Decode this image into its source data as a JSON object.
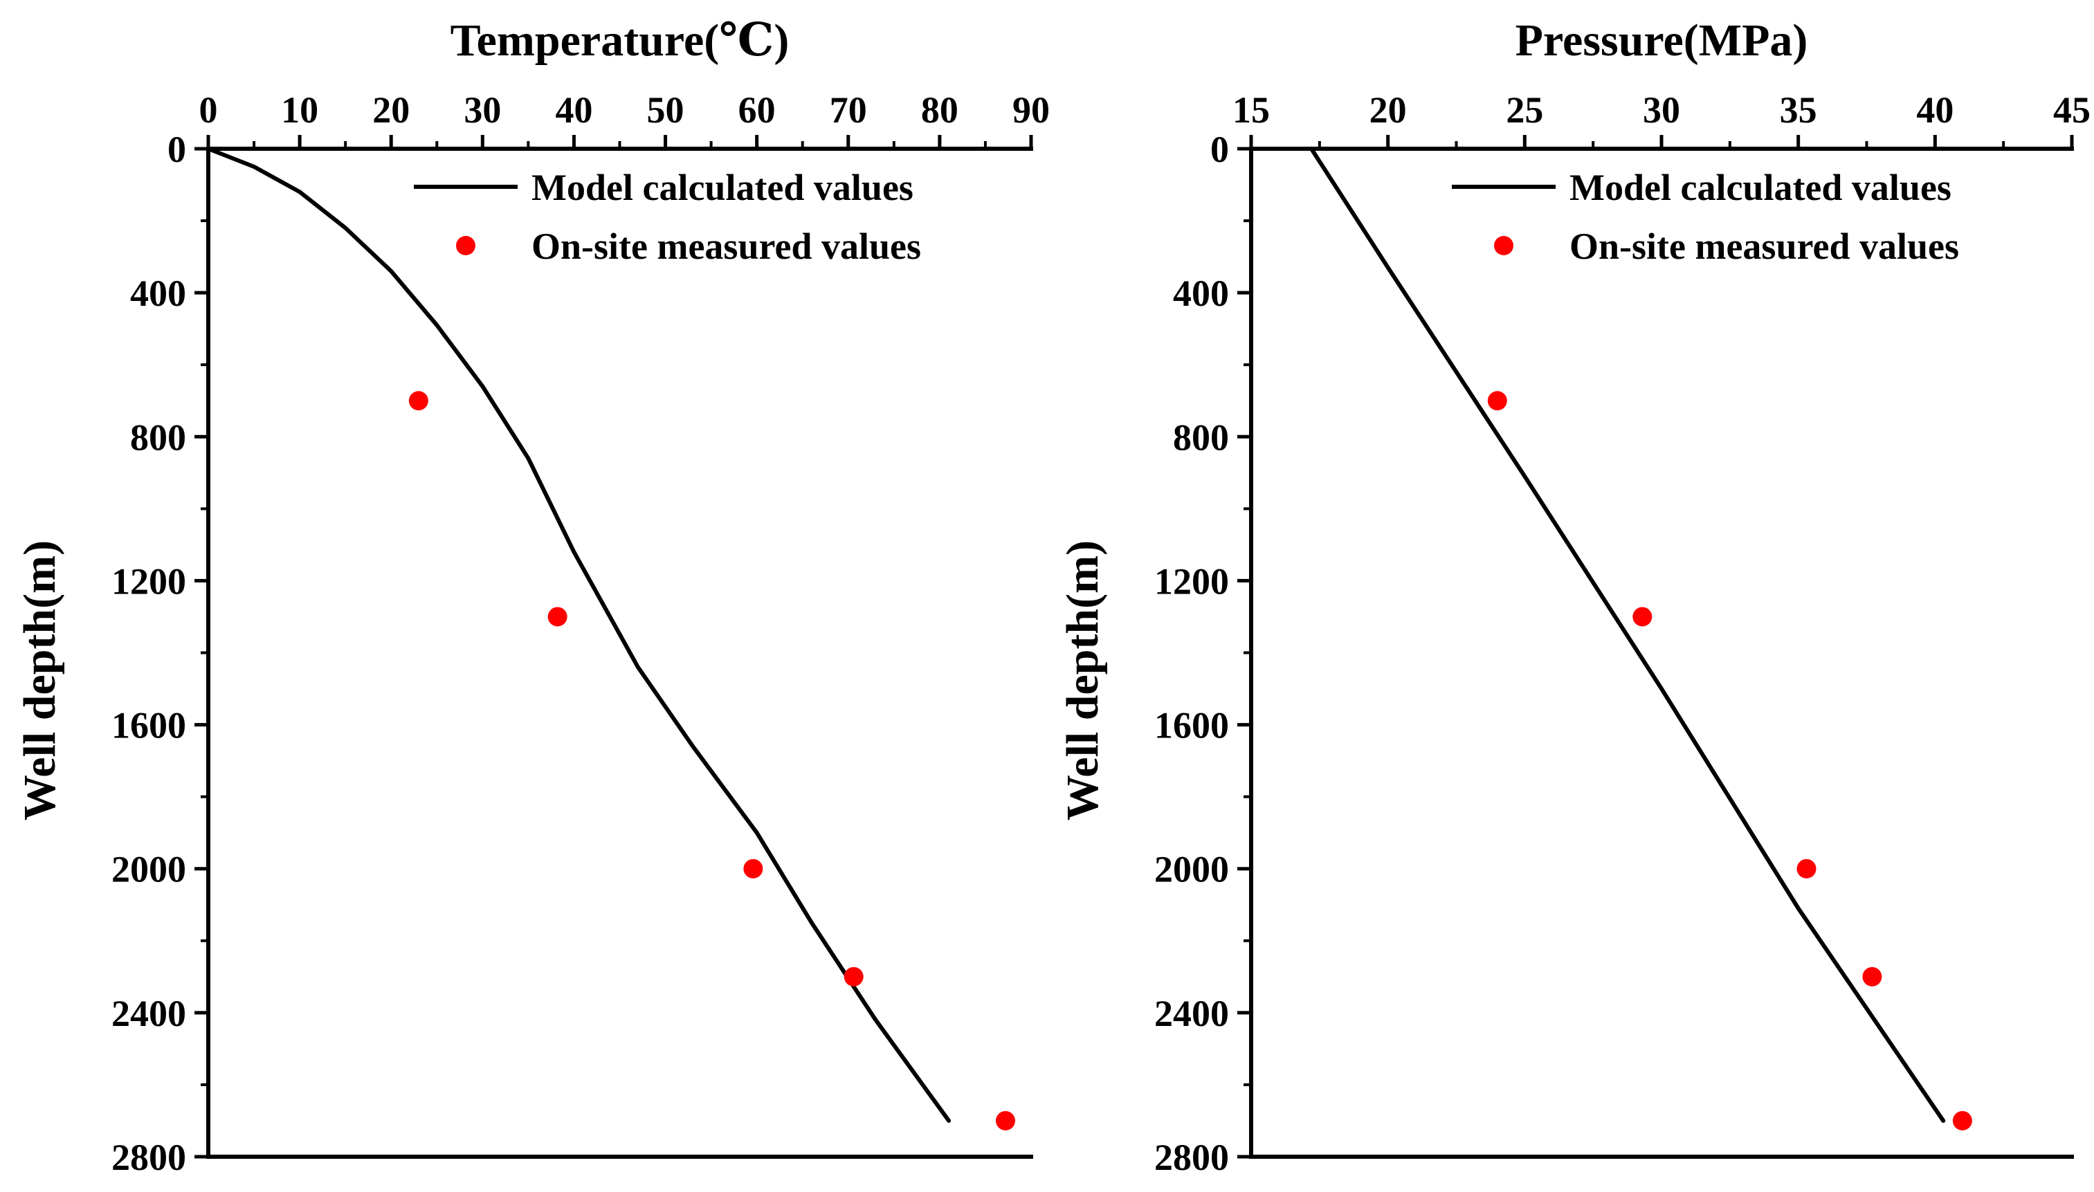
{
  "chart_data": [
    {
      "type": "line",
      "title": "",
      "xlabel": "Temperature(℃)",
      "ylabel": "Well depth(m)",
      "xlim": [
        0,
        90
      ],
      "ylim": [
        2800,
        0
      ],
      "x_ticks": [
        "0",
        "10",
        "20",
        "30",
        "40",
        "50",
        "60",
        "70",
        "80",
        "90"
      ],
      "y_ticks": [
        "0",
        "400",
        "800",
        "1200",
        "1600",
        "2000",
        "2400",
        "2800"
      ],
      "legend_position": "top-right",
      "series": [
        {
          "name": "Model calculated values",
          "style": "line",
          "color": "#000000",
          "points": [
            [
              0,
              0
            ],
            [
              5,
              50
            ],
            [
              10,
              120
            ],
            [
              15,
              220
            ],
            [
              20,
              340
            ],
            [
              25,
              490
            ],
            [
              30,
              660
            ],
            [
              35,
              860
            ],
            [
              40,
              1120
            ],
            [
              47,
              1440
            ],
            [
              53,
              1660
            ],
            [
              60,
              1900
            ],
            [
              66,
              2150
            ],
            [
              73,
              2420
            ],
            [
              81,
              2700
            ]
          ]
        },
        {
          "name": "On-site measured values",
          "style": "scatter",
          "color": "#ff0000",
          "points": [
            [
              23,
              700
            ],
            [
              38.2,
              1300
            ],
            [
              59.6,
              2000
            ],
            [
              70.6,
              2300
            ],
            [
              87.2,
              2700
            ]
          ]
        }
      ]
    },
    {
      "type": "line",
      "title": "",
      "xlabel": "Pressure(MPa)",
      "ylabel": "Well depth(m)",
      "xlim": [
        15,
        45
      ],
      "ylim": [
        2800,
        0
      ],
      "x_ticks": [
        "15",
        "20",
        "25",
        "30",
        "35",
        "40",
        "45"
      ],
      "y_ticks": [
        "0",
        "400",
        "800",
        "1200",
        "1600",
        "2000",
        "2400",
        "2800"
      ],
      "legend_position": "top-right",
      "series": [
        {
          "name": "Model calculated values",
          "style": "line",
          "color": "#000000",
          "points": [
            [
              17.2,
              0
            ],
            [
              20,
              330
            ],
            [
              25,
              910
            ],
            [
              30,
              1500
            ],
            [
              35,
              2110
            ],
            [
              40.3,
              2700
            ]
          ]
        },
        {
          "name": "On-site measured values",
          "style": "scatter",
          "color": "#ff0000",
          "points": [
            [
              24,
              700
            ],
            [
              29.3,
              1300
            ],
            [
              35.3,
              2000
            ],
            [
              37.7,
              2300
            ],
            [
              41,
              2700
            ]
          ]
        }
      ]
    }
  ]
}
